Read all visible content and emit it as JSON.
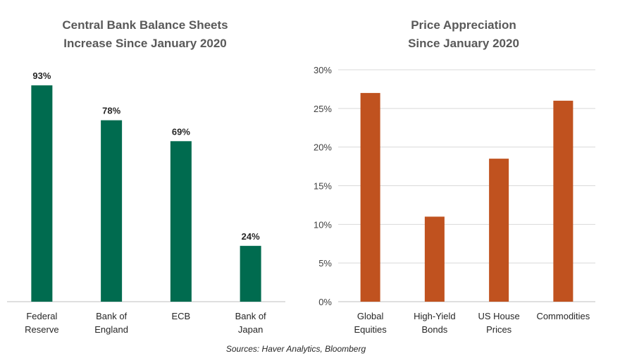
{
  "source": "Sources: Haver Analytics, Bloomberg",
  "chart_data": [
    {
      "type": "bar",
      "title_lines": [
        "Central Bank Balance Sheets",
        "Increase Since January 2020"
      ],
      "categories": [
        [
          "Federal",
          "Reserve"
        ],
        [
          "Bank of",
          "England"
        ],
        [
          "ECB"
        ],
        [
          "Bank of",
          "Japan"
        ]
      ],
      "values": [
        93,
        78,
        69,
        24
      ],
      "data_labels": [
        "93%",
        "78%",
        "69%",
        "24%"
      ],
      "ylim": [
        0,
        100
      ],
      "y_axis_visible": false,
      "grid": false,
      "color": "#006B4F"
    },
    {
      "type": "bar",
      "title_lines": [
        "Price Appreciation",
        "Since January 2020"
      ],
      "categories": [
        [
          "Global",
          "Equities"
        ],
        [
          "High-Yield",
          "Bonds"
        ],
        [
          "US House",
          "Prices"
        ],
        [
          "Commodities"
        ]
      ],
      "values": [
        27,
        11,
        18.5,
        26
      ],
      "ylim": [
        0,
        30
      ],
      "yticks": [
        0,
        5,
        10,
        15,
        20,
        25,
        30
      ],
      "ytick_labels": [
        "0%",
        "5%",
        "10%",
        "15%",
        "20%",
        "25%",
        "30%"
      ],
      "grid": true,
      "color": "#C0521F"
    }
  ]
}
